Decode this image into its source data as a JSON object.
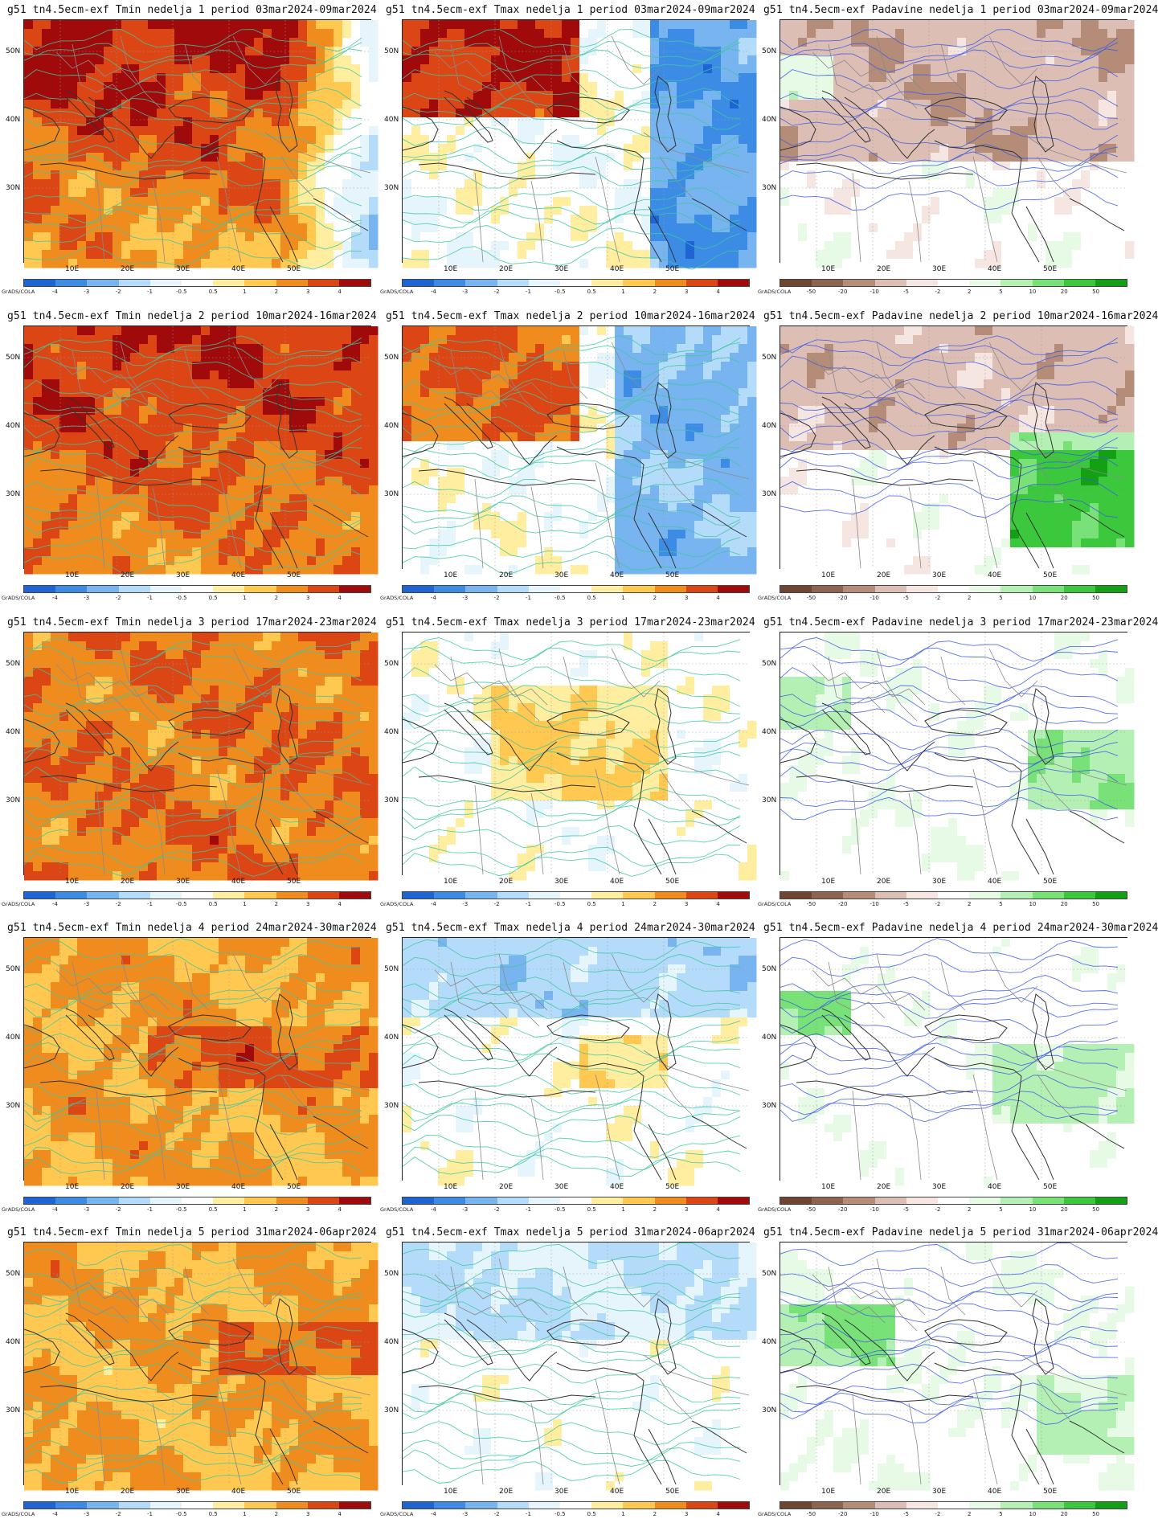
{
  "row_tops": [
    0,
    381,
    762,
    1142,
    1521
  ],
  "col_lefts": [
    1,
    472,
    942
  ],
  "y_ticks": [
    "50N",
    "40N",
    "30N"
  ],
  "x_ticks": [
    "10E",
    "20E",
    "30E",
    "40E",
    "50E"
  ],
  "credit": "GrADS/COLA",
  "temp_colorbar": {
    "colors": [
      "#1e64d2",
      "#3c8ce6",
      "#78b4f0",
      "#b4dcfa",
      "#e6f5fc",
      "#ffffff",
      "#ffeea0",
      "#ffc850",
      "#f08c1e",
      "#dc4614",
      "#a00a0a"
    ],
    "labels": [
      "-4",
      "-3",
      "-2",
      "-1",
      "-0.5",
      "0.5",
      "1",
      "2",
      "3",
      "4"
    ]
  },
  "precip_colorbar": {
    "colors": [
      "#6e4632",
      "#8c6450",
      "#b48c78",
      "#dcbeb4",
      "#f5e6e1",
      "#ffffff",
      "#e6fae6",
      "#b4f0b4",
      "#78e178",
      "#3cc83c",
      "#14a014"
    ],
    "labels": [
      "-50",
      "-20",
      "-10",
      "-5",
      "-2",
      "2",
      "5",
      "10",
      "20",
      "50"
    ]
  },
  "panels": [
    {
      "title": "g51 tn4.5ecm-exf Tmin nedelja 1 period 03mar2024-09mar2024",
      "var": "tmin",
      "week": 1
    },
    {
      "title": "g51 tn4.5ecm-exf Tmax nedelja 1 period 03mar2024-09mar2024",
      "var": "tmax",
      "week": 1
    },
    {
      "title": "g51 tn4.5ecm-exf Padavine nedelja 1 period 03mar2024-09mar2024",
      "var": "precip",
      "week": 1
    },
    {
      "title": "g51 tn4.5ecm-exf Tmin nedelja 2 period 10mar2024-16mar2024",
      "var": "tmin",
      "week": 2
    },
    {
      "title": "g51 tn4.5ecm-exf Tmax nedelja 2 period 10mar2024-16mar2024",
      "var": "tmax",
      "week": 2
    },
    {
      "title": "g51 tn4.5ecm-exf Padavine nedelja 2 period 10mar2024-16mar2024",
      "var": "precip",
      "week": 2
    },
    {
      "title": "g51 tn4.5ecm-exf Tmin nedelja 3 period 17mar2024-23mar2024",
      "var": "tmin",
      "week": 3
    },
    {
      "title": "g51 tn4.5ecm-exf Tmax nedelja 3 period 17mar2024-23mar2024",
      "var": "tmax",
      "week": 3
    },
    {
      "title": "g51 tn4.5ecm-exf Padavine nedelja 3 period 17mar2024-23mar2024",
      "var": "precip",
      "week": 3
    },
    {
      "title": "g51 tn4.5ecm-exf Tmin nedelja 4 period 24mar2024-30mar2024",
      "var": "tmin",
      "week": 4
    },
    {
      "title": "g51 tn4.5ecm-exf Tmax nedelja 4 period 24mar2024-30mar2024",
      "var": "tmax",
      "week": 4
    },
    {
      "title": "g51 tn4.5ecm-exf Padavine nedelja 4 period 24mar2024-30mar2024",
      "var": "precip",
      "week": 4
    },
    {
      "title": "g51 tn4.5ecm-exf Tmin nedelja 5 period 31mar2024-06apr2024",
      "var": "tmin",
      "week": 5
    },
    {
      "title": "g51 tn4.5ecm-exf Tmax nedelja 5 period 31mar2024-06apr2024",
      "var": "tmax",
      "week": 5
    },
    {
      "title": "g51 tn4.5ecm-exf Padavine nedelja 5 period 31mar2024-06apr2024",
      "var": "precip",
      "week": 5
    }
  ]
}
